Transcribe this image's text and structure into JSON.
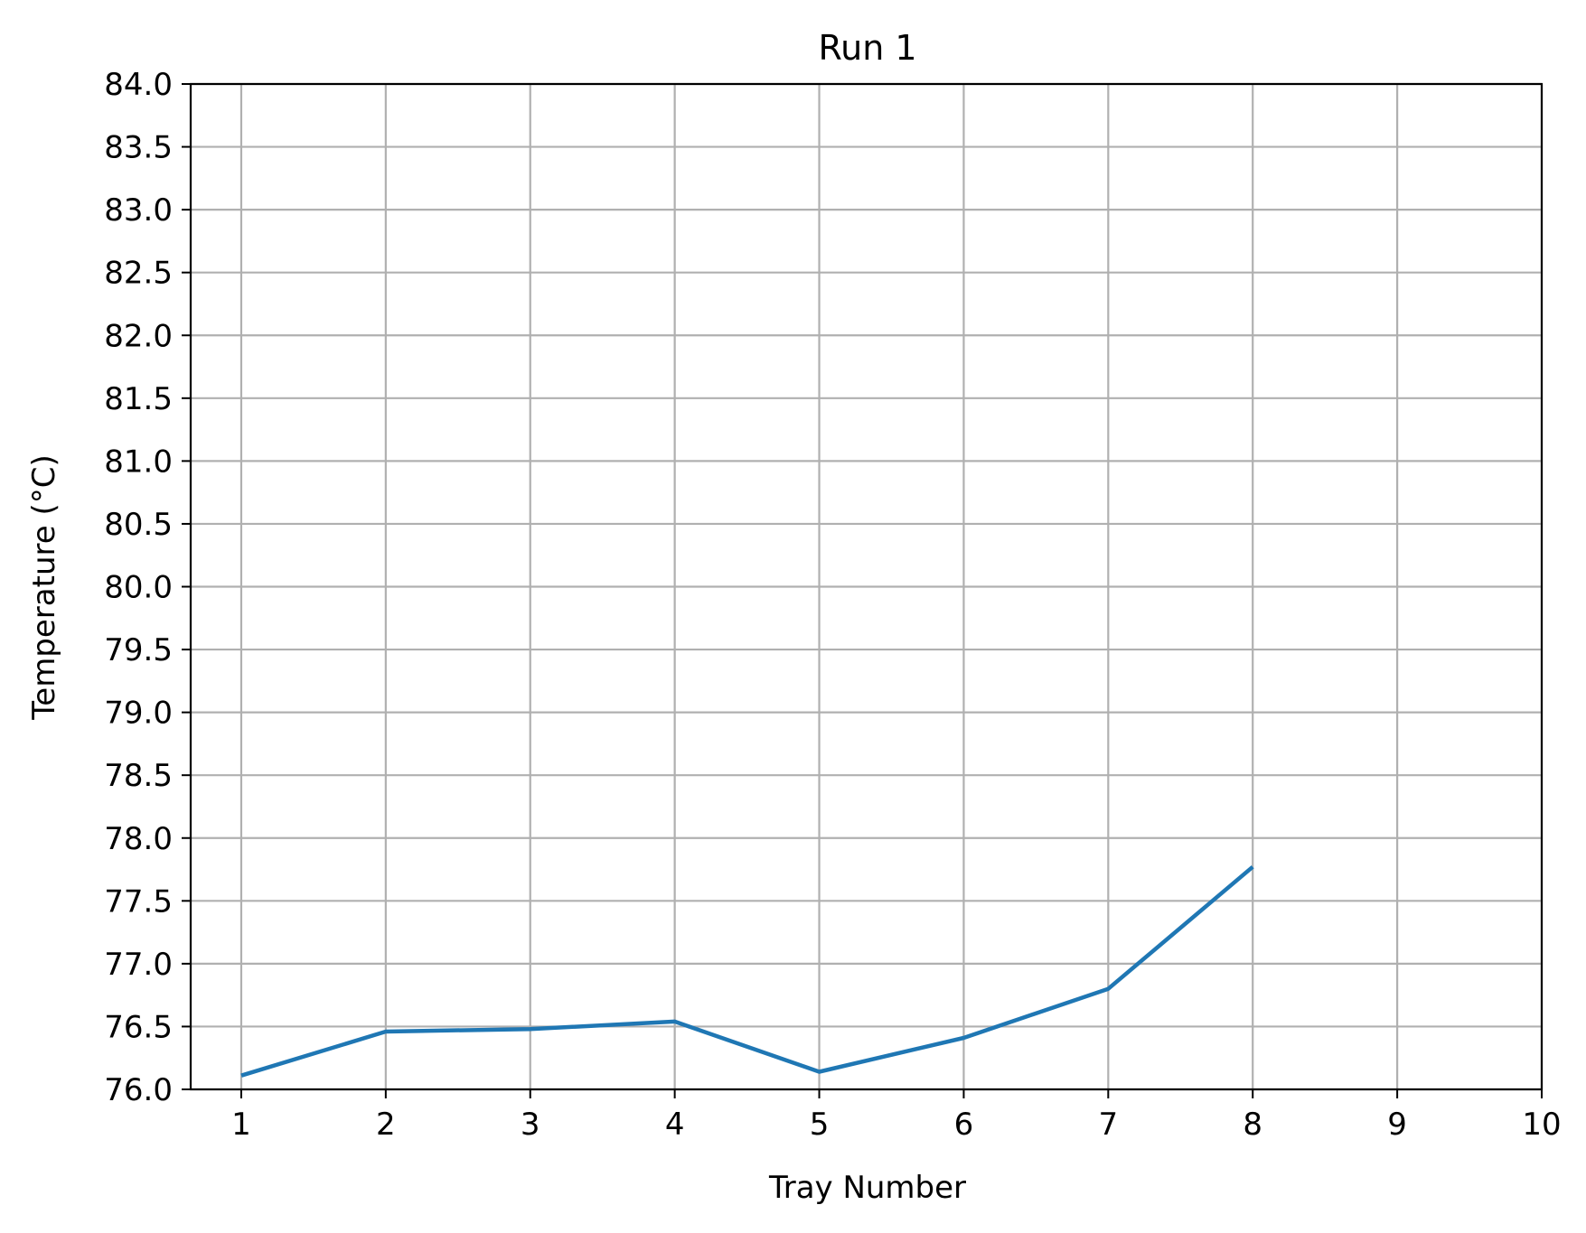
{
  "chart_data": {
    "type": "line",
    "title": "Run 1",
    "xlabel": "Tray Number",
    "ylabel": "Temperature (°C)",
    "xlim": [
      0.65,
      10
    ],
    "ylim": [
      76.0,
      84.0
    ],
    "xticks": [
      1,
      2,
      3,
      4,
      5,
      6,
      7,
      8,
      9,
      10
    ],
    "xtick_labels": [
      "1",
      "2",
      "3",
      "4",
      "5",
      "6",
      "7",
      "8",
      "9",
      "10"
    ],
    "yticks": [
      76.0,
      76.5,
      77.0,
      77.5,
      78.0,
      78.5,
      79.0,
      79.5,
      80.0,
      80.5,
      81.0,
      81.5,
      82.0,
      82.5,
      83.0,
      83.5,
      84.0
    ],
    "ytick_labels": [
      "76.0",
      "76.5",
      "77.0",
      "77.5",
      "78.0",
      "78.5",
      "79.0",
      "79.5",
      "80.0",
      "80.5",
      "81.0",
      "81.5",
      "82.0",
      "82.5",
      "83.0",
      "83.5",
      "84.0"
    ],
    "grid": true,
    "series": [
      {
        "color": "#1f77b4",
        "x": [
          1,
          2,
          3,
          4,
          5,
          6,
          7,
          8
        ],
        "y": [
          76.11,
          76.46,
          76.48,
          76.54,
          76.14,
          76.41,
          76.8,
          77.77
        ]
      }
    ]
  }
}
